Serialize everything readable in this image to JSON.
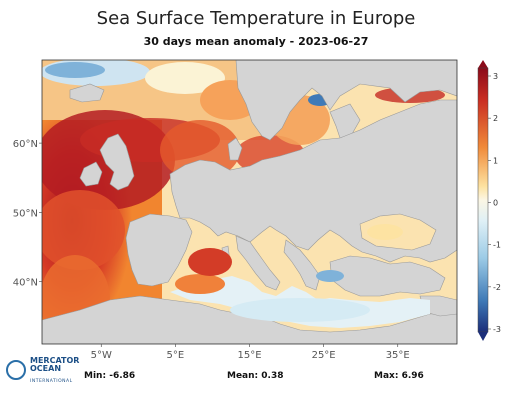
{
  "chart_data": {
    "type": "heatmap",
    "title": "Sea Surface Temperature in Europe",
    "subtitle": "30 days mean anomaly - 2023-06-27",
    "lon_range": [
      -13,
      43
    ],
    "lat_range": [
      31,
      72
    ],
    "x_ticks": [
      "5°W",
      "5°E",
      "15°E",
      "25°E",
      "35°E"
    ],
    "x_tick_values": [
      -5,
      5,
      15,
      25,
      35
    ],
    "y_ticks": [
      "60°N",
      "50°N",
      "40°N"
    ],
    "y_tick_values": [
      60,
      50,
      40
    ],
    "colorbar": {
      "range": [
        -3,
        3
      ],
      "ticks": [
        "3",
        "2",
        "1",
        "0",
        "-1",
        "-2",
        "-3"
      ],
      "colors": {
        "max": "#b2182b",
        "high": "#e34a33",
        "mid_high": "#fdae61",
        "zero": "#fbf3d5",
        "mid_low": "#abd9e9",
        "low": "#4575b4",
        "min": "#253494"
      }
    },
    "land_color": "#d3d3d3",
    "stats": {
      "min_label": "Min:",
      "min_value": "-6.86",
      "mean_label": "Mean:",
      "mean_value": "0.38",
      "max_label": "Max:",
      "max_value": "6.96"
    }
  },
  "logo": {
    "line1": "MERCATOR",
    "line2": "OCEAN",
    "line3": "INTERNATIONAL"
  }
}
